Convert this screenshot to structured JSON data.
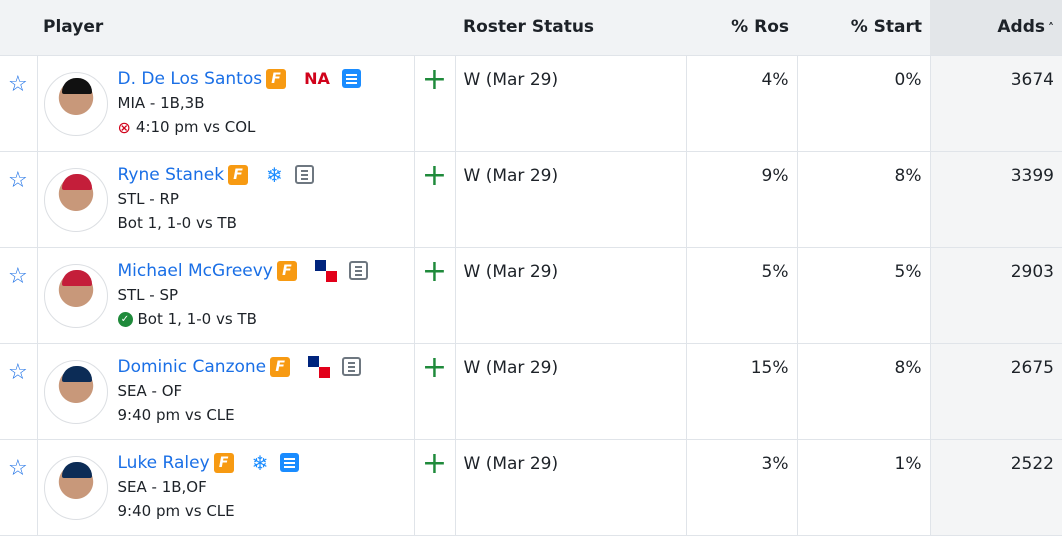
{
  "headers": {
    "player": "Player",
    "roster_status": "Roster Status",
    "ros": "% Ros",
    "start": "% Start",
    "adds": "Adds",
    "sort_icon": "chevron-up-icon"
  },
  "rows": [
    {
      "name": "D. De Los Santos",
      "team_pos": "MIA - 1B,3B",
      "game": "4:10 pm vs COL",
      "game_icon": "x-circle-icon",
      "badge": "NA",
      "note": "blue",
      "extra": "",
      "status": "W (Mar 29)",
      "ros": "4%",
      "start": "0%",
      "adds": "3674",
      "cap": "#111111"
    },
    {
      "name": "Ryne Stanek",
      "team_pos": "STL - RP",
      "game": "Bot 1, 1-0 vs TB",
      "game_icon": "",
      "badge": "",
      "note": "grey",
      "extra": "snowflake",
      "status": "W (Mar 29)",
      "ros": "9%",
      "start": "8%",
      "adds": "3399",
      "cap": "#c41e3a"
    },
    {
      "name": "Michael McGreevy",
      "team_pos": "STL - SP",
      "game": "Bot 1, 1-0 vs TB",
      "game_icon": "check-circle-icon",
      "badge": "",
      "note": "grey",
      "extra": "flag",
      "status": "W (Mar 29)",
      "ros": "5%",
      "start": "5%",
      "adds": "2903",
      "cap": "#c41e3a"
    },
    {
      "name": "Dominic Canzone",
      "team_pos": "SEA - OF",
      "game": "9:40 pm vs CLE",
      "game_icon": "",
      "badge": "",
      "note": "grey",
      "extra": "flag",
      "status": "W (Mar 29)",
      "ros": "15%",
      "start": "8%",
      "adds": "2675",
      "cap": "#0c2c56"
    },
    {
      "name": "Luke Raley",
      "team_pos": "SEA - 1B,OF",
      "game": "9:40 pm vs CLE",
      "game_icon": "",
      "badge": "",
      "note": "blue",
      "extra": "snowflake",
      "status": "W (Mar 29)",
      "ros": "3%",
      "start": "1%",
      "adds": "2522",
      "cap": "#0c2c56"
    }
  ]
}
